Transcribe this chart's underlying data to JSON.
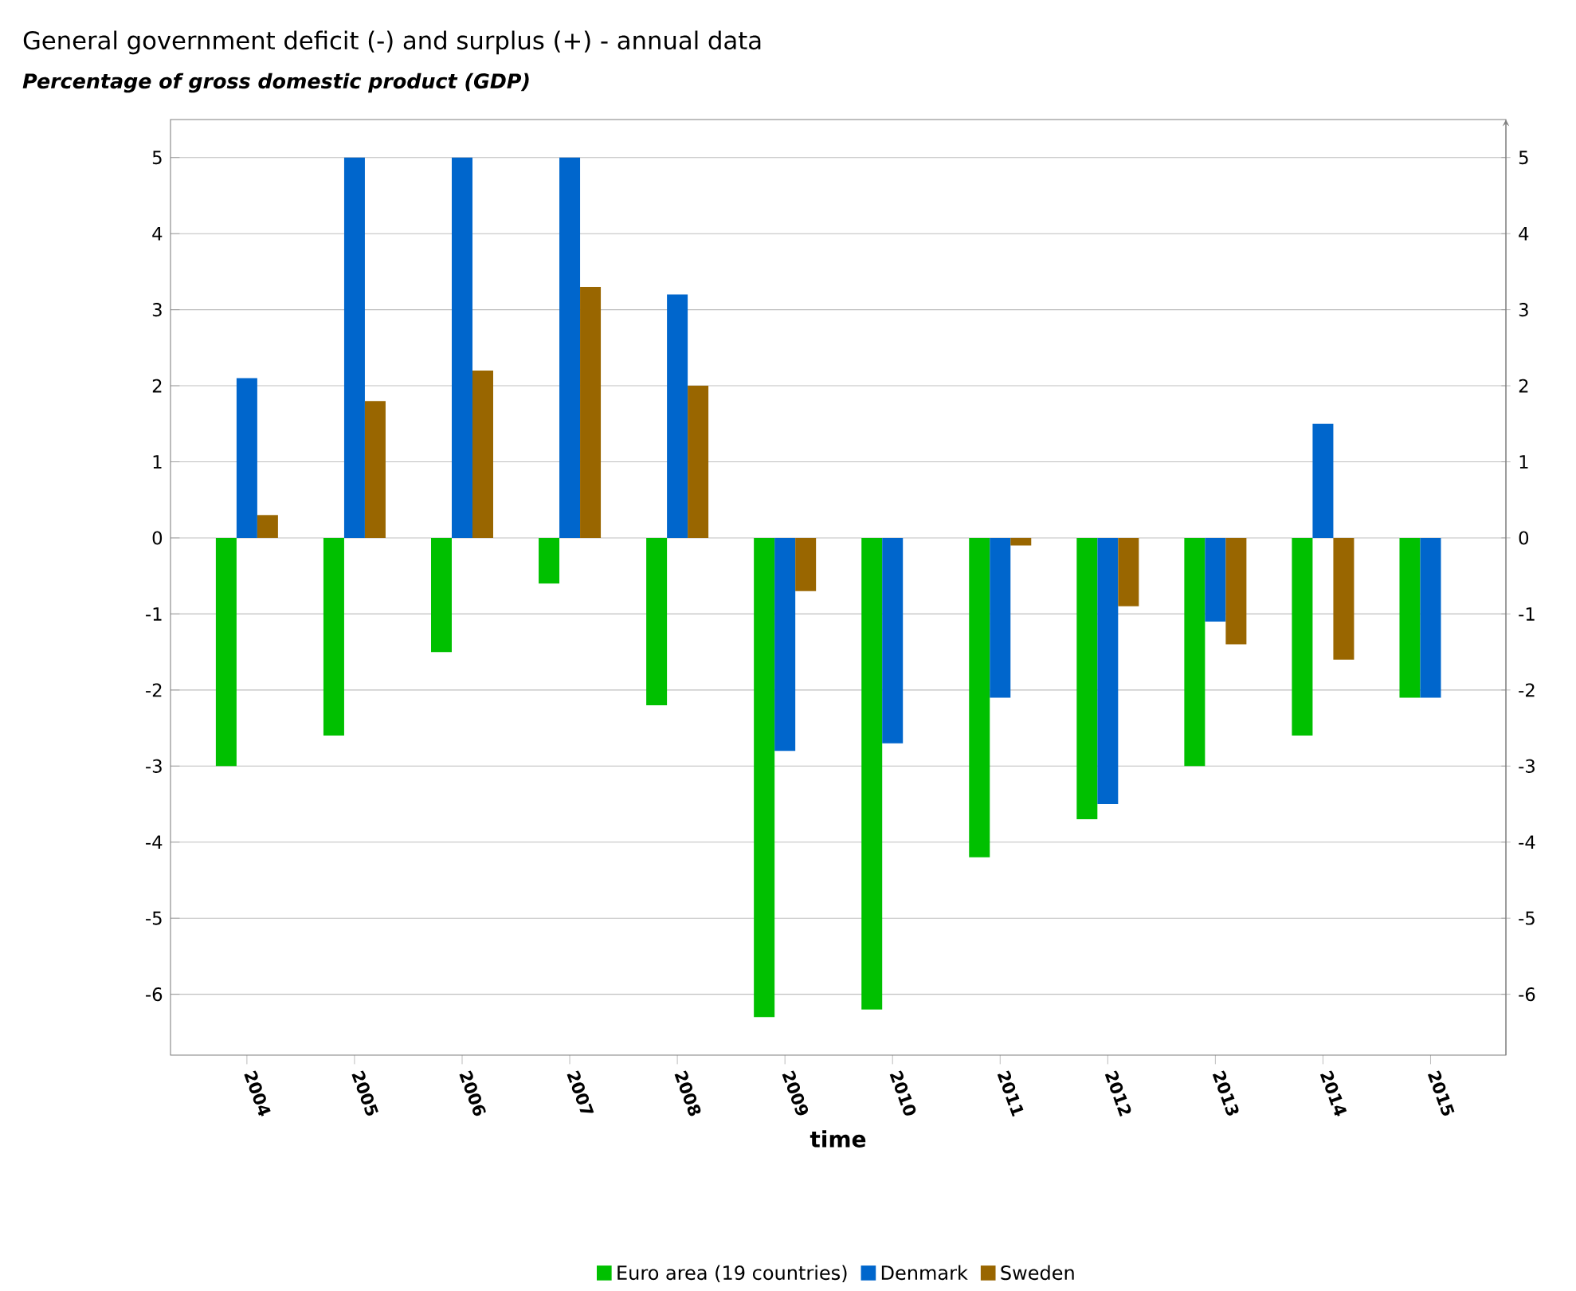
{
  "chart_data": {
    "type": "bar",
    "title": "General government deficit (-) and surplus (+) - annual data",
    "subtitle": "Percentage of gross domestic product (GDP)",
    "xlabel": "time",
    "categories": [
      "2004",
      "2005",
      "2006",
      "2007",
      "2008",
      "2009",
      "2010",
      "2011",
      "2012",
      "2013",
      "2014",
      "2015"
    ],
    "series": [
      {
        "name": "Euro area (19 countries)",
        "color": "#00c000",
        "values": [
          -3.0,
          -2.6,
          -1.5,
          -0.6,
          -2.2,
          -6.3,
          -6.2,
          -4.2,
          -3.7,
          -3.0,
          -2.6,
          -2.1
        ]
      },
      {
        "name": "Denmark",
        "color": "#0066cc",
        "values": [
          2.1,
          5.0,
          5.0,
          5.0,
          3.2,
          -2.8,
          -2.7,
          -2.1,
          -3.5,
          -1.1,
          1.5,
          -2.1
        ]
      },
      {
        "name": "Sweden",
        "color": "#996600",
        "values": [
          0.3,
          1.8,
          2.2,
          3.3,
          2.0,
          -0.7,
          0.0,
          -0.1,
          -0.9,
          -1.4,
          -1.6,
          null
        ]
      }
    ],
    "ylim": [
      -6.8,
      5.5
    ],
    "yticks": [
      -6,
      -5,
      -4,
      -3,
      -2,
      -1,
      0,
      1,
      2,
      3,
      4,
      5
    ],
    "y2lim": [
      -6.8,
      5.5
    ],
    "y2ticks": [
      -6,
      -5,
      -4,
      -3,
      -2,
      -1,
      0,
      1,
      2,
      3,
      4,
      5
    ],
    "grid": "y",
    "legend": "bottom"
  }
}
